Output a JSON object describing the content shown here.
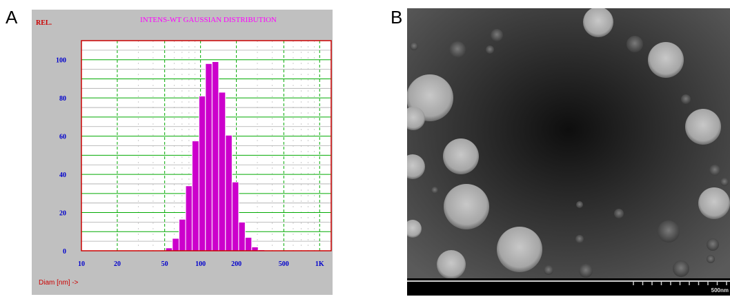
{
  "panel_labels": {
    "a": "A",
    "b": "B"
  },
  "chart_data": {
    "type": "bar",
    "title": "INTENS-WT GAUSSIAN DISTRIBUTION",
    "ylabel": "REL.",
    "xlabel": "Diam [nm] ->",
    "x_scale": "log",
    "xlim": [
      10,
      1250
    ],
    "ylim": [
      0,
      110
    ],
    "x_ticks": [
      {
        "value": 10,
        "label": "10"
      },
      {
        "value": 20,
        "label": "20"
      },
      {
        "value": 50,
        "label": "50"
      },
      {
        "value": 100,
        "label": "100"
      },
      {
        "value": 200,
        "label": "200"
      },
      {
        "value": 500,
        "label": "500"
      },
      {
        "value": 1000,
        "label": "1K"
      }
    ],
    "y_ticks": [
      0,
      20,
      40,
      60,
      80,
      100
    ],
    "bars": [
      {
        "from": 51,
        "to": 58,
        "value": 1.5
      },
      {
        "from": 58,
        "to": 66,
        "value": 6.5
      },
      {
        "from": 66,
        "to": 75,
        "value": 16.5
      },
      {
        "from": 75,
        "to": 85,
        "value": 34
      },
      {
        "from": 85,
        "to": 97,
        "value": 57.5
      },
      {
        "from": 97,
        "to": 110,
        "value": 81
      },
      {
        "from": 110,
        "to": 125,
        "value": 98
      },
      {
        "from": 125,
        "to": 142,
        "value": 99
      },
      {
        "from": 142,
        "to": 162,
        "value": 83
      },
      {
        "from": 162,
        "to": 184,
        "value": 60.5
      },
      {
        "from": 184,
        "to": 209,
        "value": 36
      },
      {
        "from": 209,
        "to": 237,
        "value": 15
      },
      {
        "from": 237,
        "to": 269,
        "value": 7
      },
      {
        "from": 269,
        "to": 305,
        "value": 2
      },
      {
        "from": 305,
        "to": 346,
        "value": 0.5
      }
    ],
    "grid": true,
    "colors": {
      "background": "#c0c0c0",
      "plot_background": "#ffffff",
      "bar": "#cc00cc",
      "title": "#ff00ff",
      "axis_labels": "#0000cc",
      "frame": "#cc0000",
      "major_grid": "#00aa00",
      "minor_grid": "#aaaaaa",
      "rel_label": "#cc0000",
      "xlabel": "#cc0000"
    }
  },
  "micrograph": {
    "scale_bar_label": "500nm",
    "colors": {
      "background": "#1a1a1a",
      "particle": "#b8b8b8",
      "bar": "#000000"
    }
  }
}
